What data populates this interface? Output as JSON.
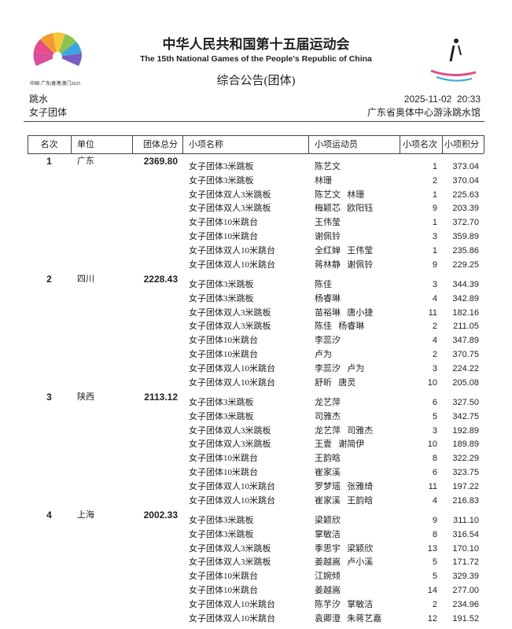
{
  "header": {
    "logo_caption": "中国·广东|香港|澳门2025",
    "title": "中华人民共和国第十五届运动会",
    "subtitle": "The 15th National Games of the People's Republic of China",
    "doc_title": "综合公告(团体)",
    "sport": "跳水",
    "event": "女子团体",
    "datetime": "2025-11-02  20:33",
    "venue": "广东省奥体中心游泳跳水馆"
  },
  "table": {
    "columns": [
      "名次",
      "单位",
      "团体总分",
      "小项名称",
      "小项运动员",
      "小项名次",
      "小项积分"
    ],
    "teams": [
      {
        "rank": 1,
        "unit": "广东",
        "total": "2369.80",
        "events": [
          [
            "女子团体3米跳板",
            "陈艺文",
            1,
            "373.04"
          ],
          [
            "女子团体3米跳板",
            "林珊",
            2,
            "370.04"
          ],
          [
            "女子团体双人3米跳板",
            "陈艺文   林珊",
            1,
            "225.63"
          ],
          [
            "女子团体双人3米跳板",
            "梅颖芯   欧阳钰",
            9,
            "203.39"
          ],
          [
            "女子团体10米跳台",
            "王伟莹",
            1,
            "372.70"
          ],
          [
            "女子团体10米跳台",
            "谢佩铃",
            3,
            "359.89"
          ],
          [
            "女子团体双人10米跳台",
            "全红婵   王伟莹",
            1,
            "235.86"
          ],
          [
            "女子团体双人10米跳台",
            "蒋林静   谢佩铃",
            9,
            "229.25"
          ]
        ]
      },
      {
        "rank": 2,
        "unit": "四川",
        "total": "2228.43",
        "events": [
          [
            "女子团体3米跳板",
            "陈佳",
            3,
            "344.39"
          ],
          [
            "女子团体3米跳板",
            "杨睿琳",
            4,
            "342.89"
          ],
          [
            "女子团体双人3米跳板",
            "苗裕琳   唐小捷",
            11,
            "182.16"
          ],
          [
            "女子团体双人3米跳板",
            "陈佳   杨睿琳",
            2,
            "211.05"
          ],
          [
            "女子团体10米跳台",
            "李蕊汐",
            4,
            "347.89"
          ],
          [
            "女子团体10米跳台",
            "卢为",
            2,
            "370.75"
          ],
          [
            "女子团体双人10米跳台",
            "李蕊汐   卢为",
            3,
            "224.22"
          ],
          [
            "女子团体双人10米跳台",
            "舒昕   唐灵",
            10,
            "205.08"
          ]
        ]
      },
      {
        "rank": 3,
        "unit": "陕西",
        "total": "2113.12",
        "events": [
          [
            "女子团体3米跳板",
            "龙艺萍",
            6,
            "327.50"
          ],
          [
            "女子团体3米跳板",
            "司雅杰",
            5,
            "342.75"
          ],
          [
            "女子团体双人3米跳板",
            "龙艺萍   司雅杰",
            3,
            "192.89"
          ],
          [
            "女子团体双人3米跳板",
            "王壹   谢简伊",
            10,
            "189.89"
          ],
          [
            "女子团体10米跳台",
            "王韵晗",
            8,
            "322.29"
          ],
          [
            "女子团体10米跳台",
            "崔家溪",
            6,
            "323.75"
          ],
          [
            "女子团体双人10米跳台",
            "罗梦瑶   张雅绮",
            11,
            "197.22"
          ],
          [
            "女子团体双人10米跳台",
            "崔家溪   王韵晗",
            4,
            "216.83"
          ]
        ]
      },
      {
        "rank": 4,
        "unit": "上海",
        "total": "2002.33",
        "events": [
          [
            "女子团体3米跳板",
            "梁颖欣",
            9,
            "311.10"
          ],
          [
            "女子团体3米跳板",
            "掌敏洁",
            8,
            "316.54"
          ],
          [
            "女子团体双人3米跳板",
            "季思宇   梁颖欣",
            13,
            "170.10"
          ],
          [
            "女子团体双人3米跳板",
            "姜越嵩   卢小溪",
            5,
            "171.72"
          ],
          [
            "女子团体10米跳台",
            "江婉倾",
            5,
            "329.39"
          ],
          [
            "女子团体10米跳台",
            "姜越嵩",
            14,
            "277.00"
          ],
          [
            "女子团体双人10米跳台",
            "陈芋汐   掌敏洁",
            2,
            "234.96"
          ],
          [
            "女子团体双人10米跳台",
            "袁卿澄   朱蒋艺嘉",
            12,
            "191.52"
          ]
        ]
      }
    ]
  }
}
